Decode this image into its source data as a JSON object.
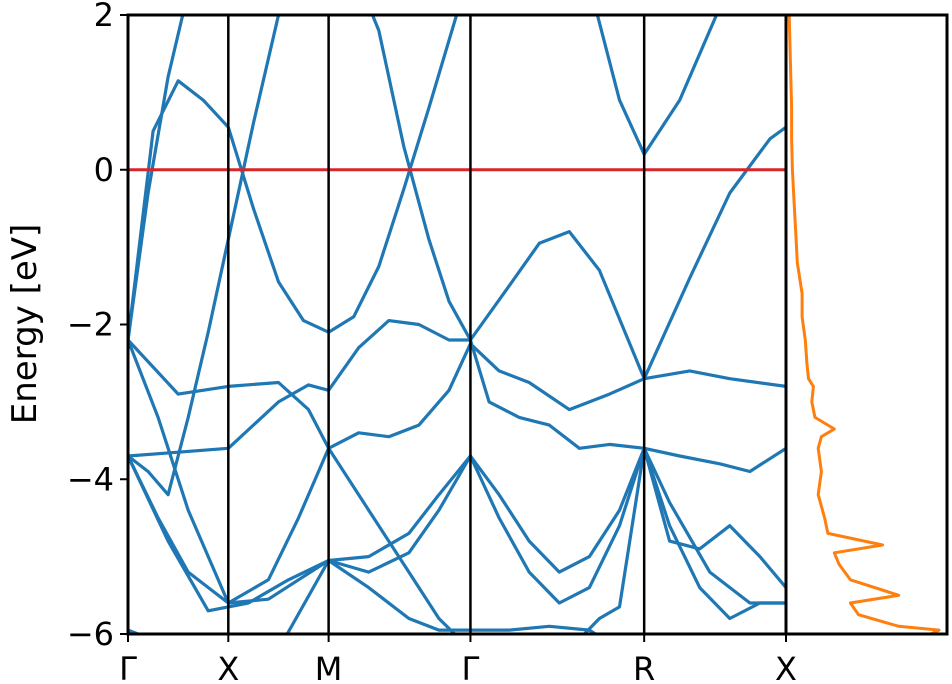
{
  "chart_data": [
    {
      "type": "line",
      "ylabel": "Energy [eV]",
      "ylim": [
        -6,
        2
      ],
      "yticks": [
        2,
        0,
        -2,
        -4,
        -6
      ],
      "ytick_labels": [
        "2",
        "0",
        "−2",
        "−4",
        "−6"
      ],
      "kpoints": [
        {
          "label": "Γ",
          "x": 0.0
        },
        {
          "label": "X",
          "x": 0.5
        },
        {
          "label": "M",
          "x": 1.0
        },
        {
          "label": "Γ",
          "x": 1.707
        },
        {
          "label": "R",
          "x": 2.573
        },
        {
          "label": "X",
          "x": 3.28
        }
      ],
      "xlim": [
        0.0,
        3.28
      ],
      "fermi_level": 0,
      "colors": {
        "bands": "#1f77b4",
        "fermi": "#d62728",
        "kpoint_lines": "#000000",
        "dos": "#ff7f0e"
      },
      "grid": false,
      "bands": [
        {
          "x": [
            0.0,
            0.125,
            0.25,
            0.375,
            0.5,
            0.625,
            0.75,
            0.875,
            1.0,
            1.125,
            1.25,
            1.375,
            1.5,
            1.707,
            1.9,
            2.1,
            2.3,
            2.45,
            2.573,
            2.75,
            2.95,
            3.1,
            3.28
          ],
          "y": [
            -2.2,
            0.5,
            1.15,
            0.9,
            0.55,
            -0.5,
            -1.45,
            -1.95,
            -2.1,
            -1.9,
            -1.25,
            -0.25,
            0.8,
            2.6,
            2.6,
            2.6,
            2.4,
            0.9,
            0.2,
            0.9,
            2.1,
            2.6,
            2.6
          ]
        },
        {
          "x": [
            0.0,
            0.1,
            0.2,
            0.3,
            0.4,
            0.5,
            0.625,
            0.75,
            0.875,
            1.0,
            1.125,
            1.25,
            1.375,
            1.5,
            1.6,
            1.707,
            1.9,
            2.05,
            2.2,
            2.35,
            2.573,
            2.8,
            3.0,
            3.2,
            3.28
          ],
          "y": [
            -2.2,
            -0.3,
            1.2,
            2.3,
            2.6,
            2.6,
            2.6,
            2.6,
            2.6,
            2.6,
            2.6,
            1.8,
            0.3,
            -0.9,
            -1.7,
            -2.2,
            -1.5,
            -0.95,
            -0.8,
            -1.3,
            -2.7,
            -1.4,
            -0.3,
            0.4,
            0.55
          ]
        },
        {
          "x": [
            0.0,
            0.1,
            0.2,
            0.3,
            0.4,
            0.5,
            0.625,
            0.75,
            0.875,
            1.0,
            1.1,
            1.2,
            1.3,
            1.4,
            1.5,
            1.6,
            1.707,
            1.85,
            2.0,
            2.2,
            2.4,
            2.573,
            2.8,
            3.0,
            3.28
          ],
          "y": [
            -3.7,
            -3.9,
            -4.2,
            -3.2,
            -2.1,
            -0.9,
            0.6,
            2.0,
            2.6,
            2.6,
            2.4,
            2.0,
            2.4,
            2.6,
            2.6,
            2.6,
            2.6,
            2.6,
            2.6,
            2.6,
            2.6,
            2.6,
            2.6,
            2.6,
            2.6
          ]
        },
        {
          "x": [
            0.0,
            0.25,
            0.5,
            0.75,
            0.9,
            1.0,
            1.15,
            1.3,
            1.45,
            1.6,
            1.707,
            1.8,
            1.95,
            2.1,
            2.25,
            2.4,
            2.573,
            2.75,
            2.95,
            3.1,
            3.28
          ],
          "y": [
            -3.7,
            -3.65,
            -3.6,
            -3.0,
            -2.78,
            -2.85,
            -2.3,
            -1.95,
            -2.0,
            -2.2,
            -2.2,
            -3.0,
            -3.2,
            -3.3,
            -3.6,
            -3.55,
            -3.6,
            -3.7,
            -3.8,
            -3.9,
            -3.6
          ]
        },
        {
          "x": [
            0.0,
            0.15,
            0.3,
            0.5,
            0.7,
            0.85,
            1.0,
            1.15,
            1.3,
            1.45,
            1.6,
            1.707,
            1.85,
            2.0,
            2.2,
            2.4,
            2.573,
            2.8,
            3.0,
            3.28
          ],
          "y": [
            -2.2,
            -3.2,
            -4.4,
            -5.6,
            -5.3,
            -4.5,
            -3.6,
            -3.4,
            -3.45,
            -3.3,
            -2.85,
            -2.25,
            -2.6,
            -2.75,
            -3.1,
            -2.9,
            -2.7,
            -2.6,
            -2.7,
            -2.8
          ]
        },
        {
          "x": [
            0.0,
            0.25,
            0.5,
            0.75,
            0.9,
            1.0,
            1.2,
            1.4,
            1.55,
            1.707,
            1.85,
            2.0,
            2.2,
            2.35,
            2.45,
            2.573,
            2.7,
            2.85,
            3.0,
            3.15,
            3.28
          ],
          "y": [
            -2.2,
            -2.9,
            -2.8,
            -2.75,
            -3.1,
            -3.6,
            -4.4,
            -5.2,
            -5.8,
            -6.2,
            -6.2,
            -6.2,
            -6.2,
            -5.8,
            -5.65,
            -3.6,
            -4.6,
            -5.4,
            -5.8,
            -5.6,
            -5.6
          ]
        },
        {
          "x": [
            0.0,
            0.15,
            0.3,
            0.5,
            0.7,
            0.85,
            1.0,
            1.2,
            1.4,
            1.55,
            1.707,
            1.85,
            2.0,
            2.15,
            2.3,
            2.45,
            2.573,
            2.7,
            2.9,
            3.1,
            3.28
          ],
          "y": [
            -3.7,
            -4.5,
            -5.2,
            -5.6,
            -5.55,
            -5.3,
            -5.05,
            -5.0,
            -4.7,
            -4.2,
            -3.7,
            -4.5,
            -5.2,
            -5.6,
            -5.4,
            -4.6,
            -3.6,
            -4.3,
            -5.2,
            -5.6,
            -5.6
          ]
        },
        {
          "x": [
            0.0,
            0.2,
            0.4,
            0.6,
            0.8,
            1.0,
            1.2,
            1.4,
            1.55,
            1.707,
            1.85,
            2.0,
            2.15,
            2.3,
            2.45,
            2.573,
            2.7,
            2.85,
            3.0,
            3.15,
            3.28
          ],
          "y": [
            -3.7,
            -4.8,
            -5.7,
            -5.6,
            -5.3,
            -5.05,
            -5.2,
            -4.95,
            -4.4,
            -3.7,
            -4.2,
            -4.8,
            -5.2,
            -5.0,
            -4.4,
            -3.6,
            -4.8,
            -4.9,
            -4.6,
            -5.0,
            -5.4
          ]
        },
        {
          "x": [
            0.0,
            0.25,
            0.5,
            0.75,
            1.0,
            1.2,
            1.4,
            1.55,
            1.707,
            1.9,
            2.1,
            2.3,
            2.45,
            2.573,
            2.7,
            2.85,
            3.0,
            3.15,
            3.28
          ],
          "y": [
            -5.95,
            -6.2,
            -6.2,
            -6.2,
            -5.05,
            -5.4,
            -5.8,
            -5.95,
            -5.95,
            -5.95,
            -5.9,
            -5.95,
            -6.2,
            -6.2,
            -6.2,
            -6.2,
            -6.2,
            -6.2,
            -6.2
          ]
        }
      ]
    },
    {
      "type": "line",
      "ylim": [
        -6,
        2
      ],
      "series_color": "#ff7f0e",
      "dos": [
        {
          "e": 2.0,
          "v": 0.02
        },
        {
          "e": 1.6,
          "v": 0.025
        },
        {
          "e": 1.2,
          "v": 0.03
        },
        {
          "e": 0.8,
          "v": 0.035
        },
        {
          "e": 0.4,
          "v": 0.035
        },
        {
          "e": 0.0,
          "v": 0.04
        },
        {
          "e": -0.4,
          "v": 0.05
        },
        {
          "e": -0.8,
          "v": 0.06
        },
        {
          "e": -1.2,
          "v": 0.07
        },
        {
          "e": -1.6,
          "v": 0.1
        },
        {
          "e": -1.9,
          "v": 0.1
        },
        {
          "e": -2.2,
          "v": 0.12
        },
        {
          "e": -2.5,
          "v": 0.13
        },
        {
          "e": -2.7,
          "v": 0.14
        },
        {
          "e": -2.8,
          "v": 0.17
        },
        {
          "e": -3.0,
          "v": 0.16
        },
        {
          "e": -3.2,
          "v": 0.18
        },
        {
          "e": -3.35,
          "v": 0.3
        },
        {
          "e": -3.45,
          "v": 0.22
        },
        {
          "e": -3.6,
          "v": 0.2
        },
        {
          "e": -3.9,
          "v": 0.22
        },
        {
          "e": -4.2,
          "v": 0.2
        },
        {
          "e": -4.5,
          "v": 0.24
        },
        {
          "e": -4.7,
          "v": 0.26
        },
        {
          "e": -4.85,
          "v": 0.6
        },
        {
          "e": -4.95,
          "v": 0.3
        },
        {
          "e": -5.1,
          "v": 0.33
        },
        {
          "e": -5.3,
          "v": 0.4
        },
        {
          "e": -5.5,
          "v": 0.7
        },
        {
          "e": -5.6,
          "v": 0.4
        },
        {
          "e": -5.75,
          "v": 0.45
        },
        {
          "e": -5.9,
          "v": 0.7
        },
        {
          "e": -5.95,
          "v": 0.95
        },
        {
          "e": -6.0,
          "v": 0.9
        }
      ]
    }
  ]
}
